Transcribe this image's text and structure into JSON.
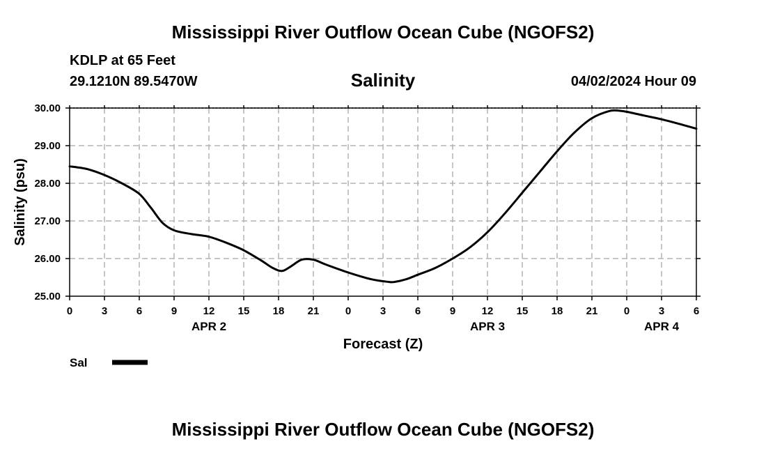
{
  "page": {
    "title_top": "Mississippi River Outflow Ocean Cube (NGOFS2)",
    "title_bottom": "Mississippi River Outflow Ocean Cube (NGOFS2)",
    "station_name": "KDLP at 65 Feet",
    "station_coords": "29.1210N  89.5470W",
    "run_time": "04/02/2024 Hour 09"
  },
  "legend": {
    "label": "Sal"
  },
  "chart_data": {
    "type": "line",
    "title": "Salinity",
    "xlabel": "Forecast (Z)",
    "ylabel": "Salinity (psu)",
    "xlim": [
      0,
      54
    ],
    "ylim": [
      25.0,
      30.0
    ],
    "grid": true,
    "x_ticks": [
      0,
      3,
      6,
      9,
      12,
      15,
      18,
      21,
      24,
      27,
      30,
      33,
      36,
      39,
      42,
      45,
      48,
      51,
      54
    ],
    "x_tick_labels": [
      "0",
      "3",
      "6",
      "9",
      "12",
      "15",
      "18",
      "21",
      "0",
      "3",
      "6",
      "9",
      "12",
      "15",
      "18",
      "21",
      "0",
      "3",
      "6"
    ],
    "date_labels": [
      {
        "x": 12,
        "text": "APR 2"
      },
      {
        "x": 36,
        "text": "APR 3"
      },
      {
        "x": 51,
        "text": "APR 4"
      }
    ],
    "y_ticks": [
      25.0,
      26.0,
      27.0,
      28.0,
      29.0,
      30.0
    ],
    "y_tick_labels": [
      "25.00",
      "26.00",
      "27.00",
      "28.00",
      "29.00",
      "30.00"
    ],
    "series": [
      {
        "name": "Sal",
        "color": "#000000",
        "x": [
          0,
          1.5,
          3,
          4.5,
          6,
          7,
          8,
          9,
          10.5,
          12,
          13.5,
          15,
          16.5,
          17.5,
          18.3,
          19,
          20,
          21,
          22,
          24,
          26,
          27.5,
          28,
          29,
          30,
          31.5,
          33,
          34.5,
          36,
          37.5,
          39,
          40.5,
          42,
          43.5,
          45,
          46.5,
          47.3,
          48,
          49.5,
          51,
          52.5,
          54
        ],
        "values": [
          28.45,
          28.38,
          28.22,
          28.0,
          27.72,
          27.35,
          26.95,
          26.75,
          26.65,
          26.58,
          26.42,
          26.22,
          25.95,
          25.75,
          25.67,
          25.78,
          25.97,
          25.97,
          25.85,
          25.63,
          25.45,
          25.38,
          25.38,
          25.45,
          25.57,
          25.75,
          26.0,
          26.3,
          26.7,
          27.2,
          27.75,
          28.3,
          28.85,
          29.35,
          29.73,
          29.92,
          29.93,
          29.9,
          29.8,
          29.7,
          29.58,
          29.45
        ]
      }
    ]
  }
}
